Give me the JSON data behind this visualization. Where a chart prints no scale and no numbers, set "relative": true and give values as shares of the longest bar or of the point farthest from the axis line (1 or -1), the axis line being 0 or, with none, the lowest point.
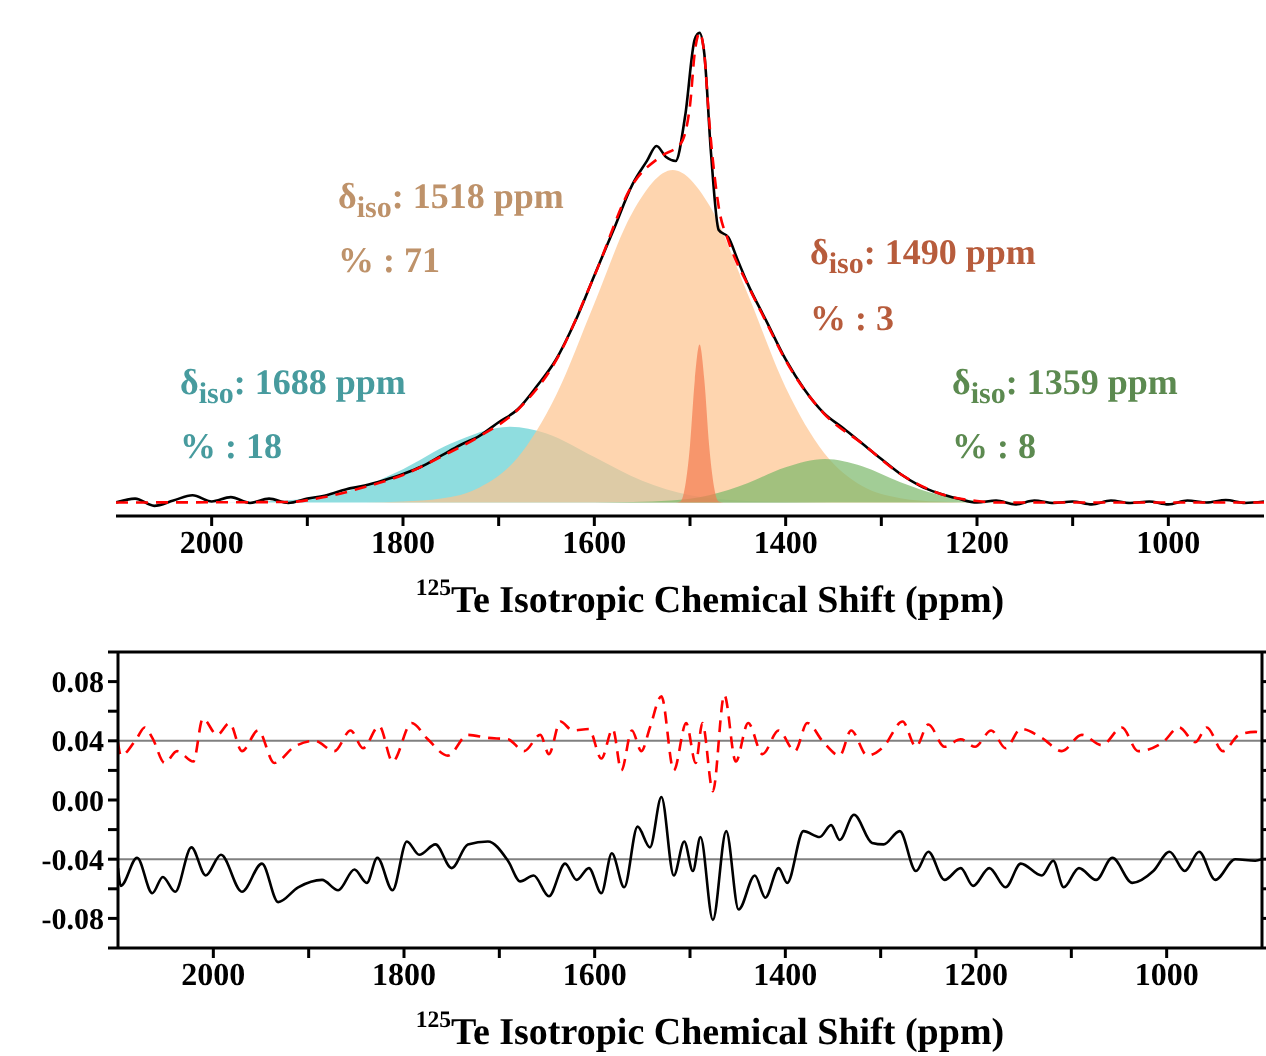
{
  "chart_data": [
    {
      "type": "line",
      "relative": true,
      "xlabel": "$^{125}$Te Isotropic Chemical Shift (ppm)",
      "xlim": [
        2100,
        900
      ],
      "xticks": [
        2000,
        {
          "value": 1900,
          "label": null
        },
        1800,
        {
          "value": 1700,
          "label": null
        },
        1600,
        {
          "value": 1500,
          "label": null
        },
        1400,
        {
          "value": 1300,
          "label": null
        },
        1200,
        {
          "value": 1100,
          "label": null
        },
        1000
      ],
      "annotations": [
        "δ$_{iso}$: 1518 ppm",
        "% : 71",
        "δ$_{iso}$: 1490 ppm",
        "% : 3",
        "δ$_{iso}$: 1688 ppm",
        "% : 18",
        "δ$_{iso}$: 1359 ppm",
        "% : 8"
      ],
      "series": [
        {
          "type": "area",
          "color": "#5fcfd2",
          "x": [
            1990,
            1950,
            1900,
            1850,
            1800,
            1750,
            1688,
            1650,
            1600,
            1550,
            1500,
            1450,
            1400,
            1350
          ],
          "values": [
            0.028,
            0.03,
            0.036,
            0.056,
            0.097,
            0.15,
            0.185,
            0.171,
            0.122,
            0.073,
            0.043,
            0.032,
            0.029,
            0.028
          ]
        },
        {
          "type": "area",
          "color": "#fdc38d",
          "x": [
            1840,
            1800,
            1760,
            1720,
            1680,
            1640,
            1600,
            1560,
            1518,
            1480,
            1440,
            1400,
            1360,
            1320,
            1280,
            1240,
            1200
          ],
          "values": [
            0.028,
            0.03,
            0.036,
            0.059,
            0.121,
            0.25,
            0.44,
            0.629,
            0.716,
            0.644,
            0.461,
            0.266,
            0.131,
            0.062,
            0.037,
            0.03,
            0.028
          ]
        },
        {
          "type": "area",
          "color": "#7ab86a",
          "x": [
            1600,
            1560,
            1520,
            1480,
            1440,
            1400,
            1359,
            1320,
            1280,
            1240,
            1200,
            1160,
            1120
          ],
          "values": [
            0.028,
            0.029,
            0.032,
            0.043,
            0.068,
            0.101,
            0.118,
            0.103,
            0.07,
            0.044,
            0.032,
            0.029,
            0.028
          ]
        },
        {
          "type": "area",
          "color": "#f47b50",
          "x": [
            1515,
            1510,
            1500,
            1495,
            1490,
            1485,
            1480,
            1470,
            1465
          ],
          "values": [
            0.028,
            0.03,
            0.146,
            0.281,
            0.355,
            0.281,
            0.146,
            0.03,
            0.028
          ]
        },
        {
          "color": "#000000",
          "line_style": "solid",
          "x": [
            2100,
            2080,
            2060,
            2040,
            2020,
            2000,
            1980,
            1960,
            1940,
            1920,
            1900,
            1880,
            1860,
            1840,
            1820,
            1800,
            1780,
            1760,
            1740,
            1720,
            1700,
            1680,
            1660,
            1640,
            1620,
            1600,
            1580,
            1560,
            1545,
            1535,
            1525,
            1515,
            1505,
            1495,
            1490,
            1485,
            1478,
            1470,
            1460,
            1450,
            1440,
            1420,
            1400,
            1380,
            1360,
            1340,
            1320,
            1300,
            1280,
            1260,
            1240,
            1220,
            1200,
            1180,
            1160,
            1140,
            1120,
            1100,
            1080,
            1060,
            1040,
            1020,
            1000,
            980,
            960,
            940,
            920,
            900
          ],
          "values": [
            0.028,
            0.036,
            0.021,
            0.032,
            0.043,
            0.03,
            0.039,
            0.027,
            0.036,
            0.027,
            0.036,
            0.043,
            0.055,
            0.063,
            0.074,
            0.087,
            0.103,
            0.125,
            0.147,
            0.166,
            0.194,
            0.221,
            0.269,
            0.324,
            0.403,
            0.498,
            0.592,
            0.687,
            0.735,
            0.766,
            0.743,
            0.735,
            0.829,
            0.987,
            1,
            0.956,
            0.75,
            0.592,
            0.577,
            0.529,
            0.482,
            0.403,
            0.324,
            0.261,
            0.213,
            0.182,
            0.15,
            0.118,
            0.087,
            0.063,
            0.047,
            0.036,
            0.028,
            0.032,
            0.024,
            0.032,
            0.027,
            0.03,
            0.024,
            0.032,
            0.027,
            0.03,
            0.024,
            0.032,
            0.028,
            0.033,
            0.027,
            0.03
          ]
        },
        {
          "color": "#ff0000",
          "line_style": "dashed",
          "x": [
            2100,
            1920,
            1880,
            1840,
            1800,
            1760,
            1720,
            1680,
            1640,
            1600,
            1560,
            1530,
            1510,
            1500,
            1495,
            1490,
            1485,
            1480,
            1470,
            1460,
            1440,
            1420,
            1400,
            1360,
            1320,
            1280,
            1240,
            1200,
            1180,
            900
          ],
          "values": [
            0.028,
            0.029,
            0.04,
            0.06,
            0.085,
            0.123,
            0.165,
            0.22,
            0.322,
            0.497,
            0.686,
            0.745,
            0.77,
            0.85,
            0.96,
            1,
            0.955,
            0.82,
            0.64,
            0.57,
            0.48,
            0.4,
            0.322,
            0.212,
            0.15,
            0.087,
            0.047,
            0.031,
            0.028,
            0.028
          ]
        }
      ]
    },
    {
      "type": "line",
      "xlabel": "$^{125}$Te Isotropic Chemical Shift (ppm)",
      "xlim": [
        2100,
        900
      ],
      "xticks": [
        2000,
        {
          "value": 1900,
          "label": null
        },
        1800,
        {
          "value": 1700,
          "label": null
        },
        1600,
        {
          "value": 1500,
          "label": null
        },
        1400,
        {
          "value": 1300,
          "label": null
        },
        1200,
        {
          "value": 1100,
          "label": null
        },
        1000
      ],
      "ylim": [
        -0.1,
        0.1
      ],
      "yticks": [
        {
          "value": -0.1,
          "label": null
        },
        -0.08,
        {
          "value": -0.06,
          "label": null
        },
        -0.04,
        {
          "value": -0.02,
          "label": null
        },
        {
          "value": 0,
          "label": "0.00"
        },
        {
          "value": 0.02,
          "label": null
        },
        0.04,
        {
          "value": 0.06,
          "label": null
        },
        0.08,
        {
          "value": 0.1,
          "label": null
        }
      ],
      "ref_lines": [
        {
          "axis": "y",
          "value": 0.04,
          "color": "#808080"
        },
        {
          "axis": "y",
          "value": -0.04,
          "color": "#808080"
        }
      ],
      "series": [
        {
          "color": "#ff0000",
          "line_style": "dashed",
          "x": [
            2100,
            2097,
            2080,
            2072,
            2064,
            2051,
            2038,
            2021,
            2011,
            1996,
            1983,
            1970,
            1953,
            1936,
            1915,
            1894,
            1873,
            1856,
            1843,
            1826,
            1812,
            1792,
            1775,
            1754,
            1733,
            1712,
            1691,
            1674,
            1657,
            1648,
            1636,
            1623,
            1606,
            1593,
            1581,
            1572,
            1561,
            1551,
            1542,
            1530,
            1517,
            1504,
            1494,
            1487,
            1476,
            1464,
            1452,
            1439,
            1424,
            1407,
            1390,
            1377,
            1360,
            1343,
            1331,
            1314,
            1297,
            1277,
            1263,
            1250,
            1233,
            1216,
            1201,
            1184,
            1169,
            1153,
            1131,
            1110,
            1089,
            1068,
            1047,
            1030,
            1004,
            987,
            970,
            958,
            941,
            924,
            907,
            900
          ],
          "values": [
            0.039,
            0.03,
            0.042,
            0.049,
            0.042,
            0.025,
            0.033,
            0.026,
            0.055,
            0.044,
            0.052,
            0.033,
            0.047,
            0.025,
            0.036,
            0.04,
            0.033,
            0.047,
            0.035,
            0.05,
            0.026,
            0.052,
            0.041,
            0.03,
            0.044,
            0.042,
            0.041,
            0.033,
            0.044,
            0.031,
            0.053,
            0.047,
            0.048,
            0.028,
            0.048,
            0.02,
            0.047,
            0.033,
            0.049,
            0.07,
            0.02,
            0.052,
            0.025,
            0.052,
            0.006,
            0.071,
            0.026,
            0.052,
            0.031,
            0.047,
            0.033,
            0.052,
            0.039,
            0.03,
            0.047,
            0.03,
            0.036,
            0.053,
            0.036,
            0.051,
            0.036,
            0.041,
            0.036,
            0.047,
            0.035,
            0.048,
            0.042,
            0.033,
            0.044,
            0.037,
            0.049,
            0.033,
            0.039,
            0.049,
            0.039,
            0.049,
            0.033,
            0.044,
            0.046,
            0.045
          ]
        },
        {
          "color": "#000000",
          "line_style": "solid",
          "x": [
            2100,
            2097,
            2080,
            2064,
            2053,
            2040,
            2023,
            2008,
            1992,
            1970,
            1949,
            1932,
            1911,
            1886,
            1869,
            1852,
            1839,
            1828,
            1812,
            1797,
            1784,
            1767,
            1750,
            1733,
            1712,
            1691,
            1678,
            1664,
            1648,
            1631,
            1619,
            1606,
            1593,
            1582,
            1569,
            1555,
            1542,
            1530,
            1517,
            1506,
            1497,
            1489,
            1476,
            1462,
            1449,
            1432,
            1421,
            1407,
            1398,
            1381,
            1364,
            1352,
            1343,
            1328,
            1309,
            1297,
            1280,
            1263,
            1250,
            1233,
            1216,
            1203,
            1186,
            1169,
            1153,
            1131,
            1119,
            1108,
            1092,
            1074,
            1057,
            1036,
            1014,
            997,
            981,
            966,
            949,
            928,
            907,
            900
          ],
          "values": [
            -0.046,
            -0.058,
            -0.039,
            -0.063,
            -0.052,
            -0.062,
            -0.032,
            -0.051,
            -0.037,
            -0.062,
            -0.043,
            -0.069,
            -0.059,
            -0.054,
            -0.061,
            -0.047,
            -0.056,
            -0.039,
            -0.061,
            -0.028,
            -0.037,
            -0.03,
            -0.046,
            -0.03,
            -0.028,
            -0.041,
            -0.055,
            -0.051,
            -0.065,
            -0.043,
            -0.054,
            -0.046,
            -0.063,
            -0.036,
            -0.059,
            -0.018,
            -0.032,
            0.002,
            -0.051,
            -0.028,
            -0.048,
            -0.025,
            -0.081,
            -0.021,
            -0.074,
            -0.051,
            -0.066,
            -0.046,
            -0.056,
            -0.021,
            -0.025,
            -0.017,
            -0.027,
            -0.01,
            -0.029,
            -0.03,
            -0.021,
            -0.048,
            -0.035,
            -0.054,
            -0.046,
            -0.058,
            -0.046,
            -0.059,
            -0.043,
            -0.051,
            -0.041,
            -0.059,
            -0.046,
            -0.054,
            -0.039,
            -0.056,
            -0.048,
            -0.035,
            -0.048,
            -0.035,
            -0.054,
            -0.04,
            -0.041,
            -0.04
          ]
        }
      ]
    }
  ]
}
